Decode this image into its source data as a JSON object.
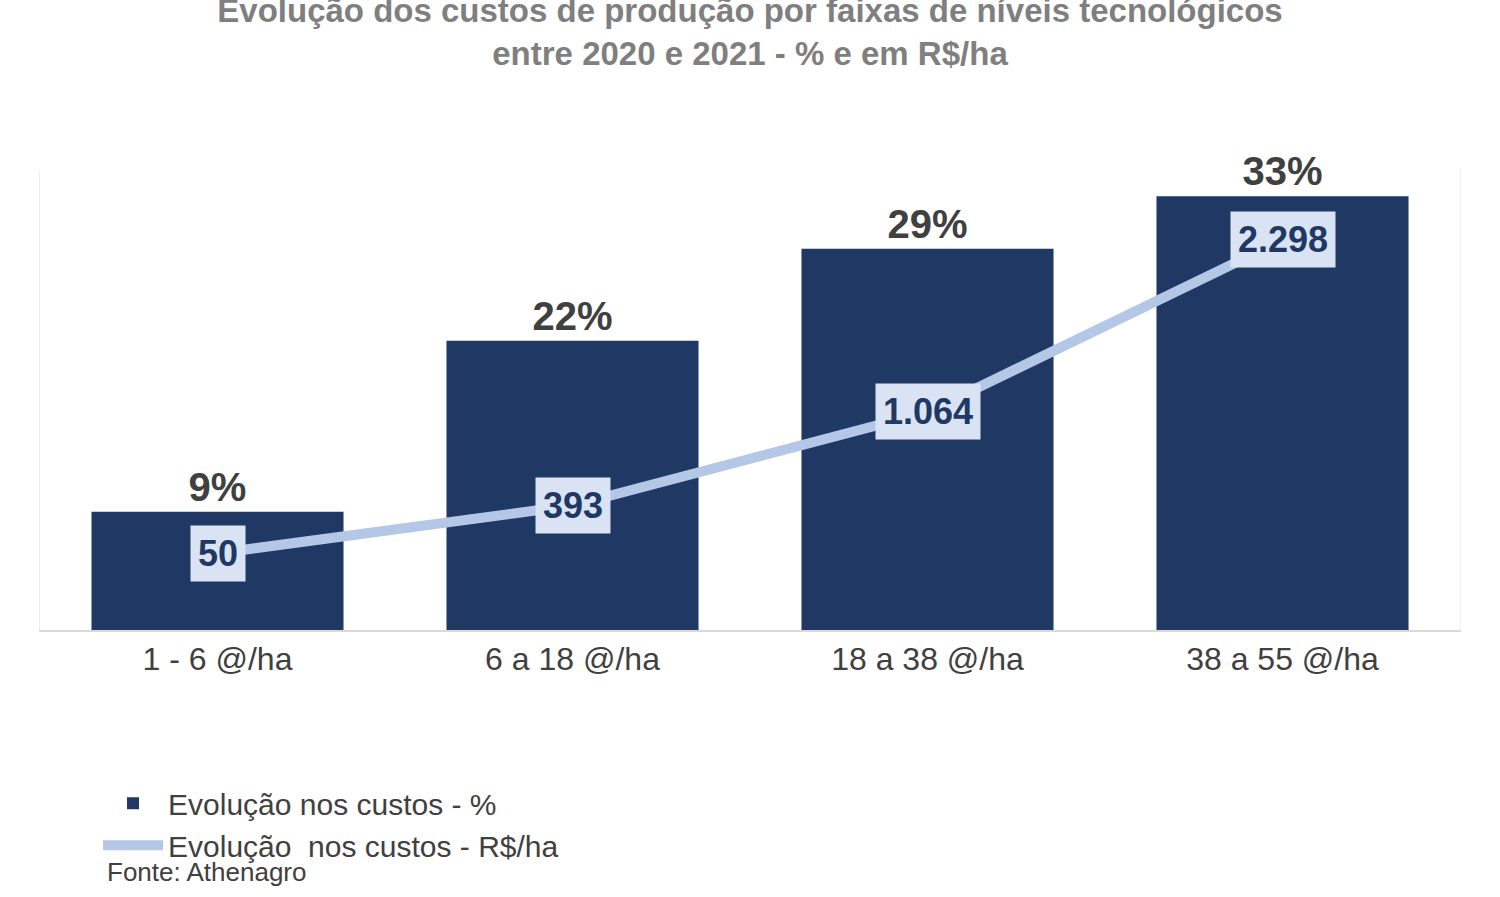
{
  "chart_data": {
    "type": "bar",
    "title": "Evolução dos custos de produção por faixas de níveis tecnológicos\nentre 2020 e 2021 - % e em R$/ha",
    "source": "Fonte: Athenagro",
    "categories": [
      "1 - 6 @/ha",
      "6 a 18 @/ha",
      "18 a 38 @/ha",
      "38 a 55 @/ha"
    ],
    "series": [
      {
        "name": "Evolução nos custos - %",
        "type": "bar",
        "color": "#203864",
        "values": [
          9,
          22,
          29,
          33
        ],
        "value_labels": [
          "9%",
          "22%",
          "29%",
          "33%"
        ]
      },
      {
        "name": "Evolução  nos custos - R$/ha",
        "type": "line",
        "axis": "y2",
        "color": "#b4c7e7",
        "values": [
          50,
          393,
          1064,
          2298
        ],
        "value_labels": [
          "50",
          "393",
          "1.064",
          "2.298"
        ]
      }
    ],
    "ylim": [
      0,
      35
    ],
    "y2lim": [
      -500,
      2800
    ],
    "data_labels": true,
    "grid": false,
    "legend": "bottom",
    "tick_labels": "x"
  }
}
